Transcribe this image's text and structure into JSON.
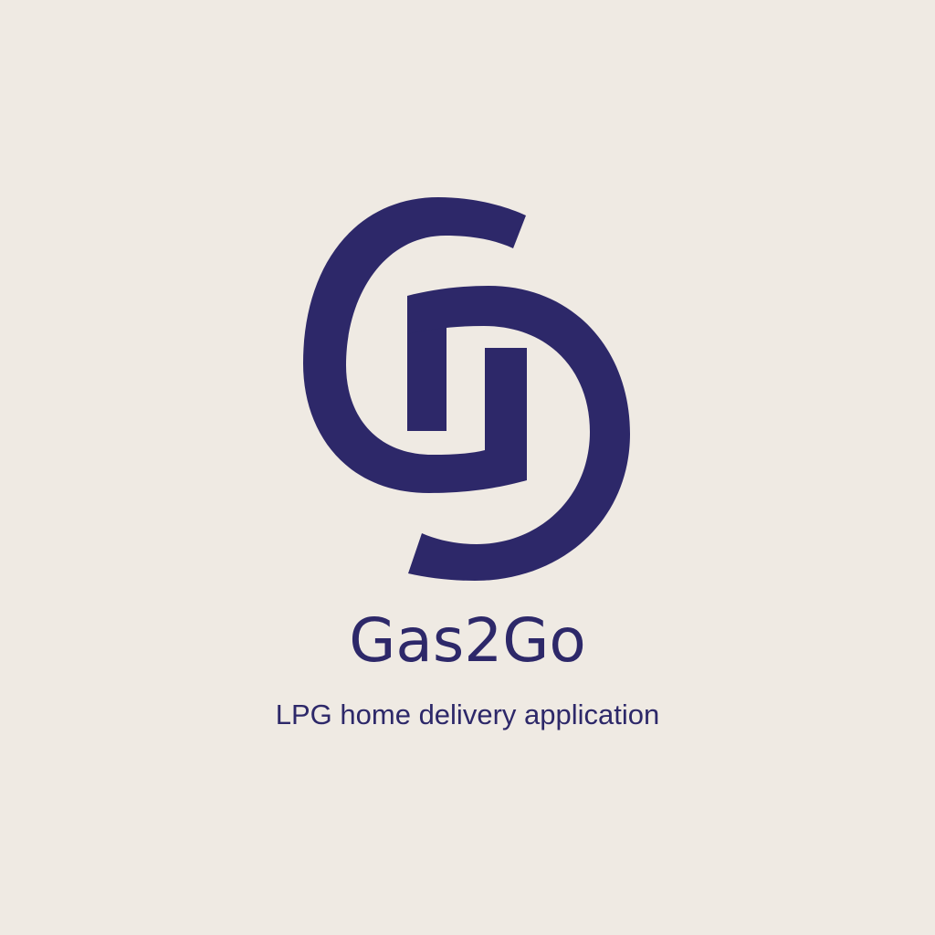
{
  "brand": {
    "name": "Gas2Go",
    "tagline": "LPG home delivery application"
  },
  "colors": {
    "background": "#efeae3",
    "brand": "#2d2869"
  },
  "logo": {
    "icon": "interlocking-g-d-monogram"
  }
}
